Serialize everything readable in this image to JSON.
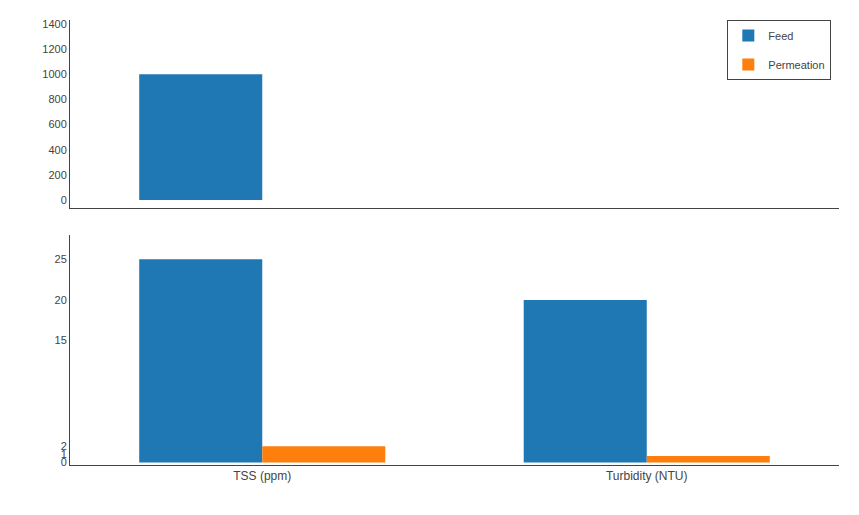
{
  "chart_data": [
    {
      "type": "bar",
      "categories": [
        "TSS (ppm)",
        "Turbidity (NTU)"
      ],
      "series": [
        {
          "name": "Feed",
          "values": [
            1000,
            0
          ]
        }
      ],
      "ylim": [
        -65,
        1430
      ],
      "yticks": [
        0,
        200,
        400,
        600,
        800,
        1000,
        1200,
        1400
      ],
      "legend": "upper right",
      "tick_labels": "y"
    },
    {
      "type": "bar",
      "categories": [
        "TSS (ppm)",
        "Turbidity (NTU)"
      ],
      "series": [
        {
          "name": "Feed",
          "values": [
            25,
            20
          ]
        },
        {
          "name": "Permeation",
          "values": [
            2,
            0.8
          ]
        }
      ],
      "ylim": [
        -0.3,
        28
      ],
      "yticks": [
        0,
        1,
        2,
        15,
        20,
        25
      ]
    }
  ]
}
